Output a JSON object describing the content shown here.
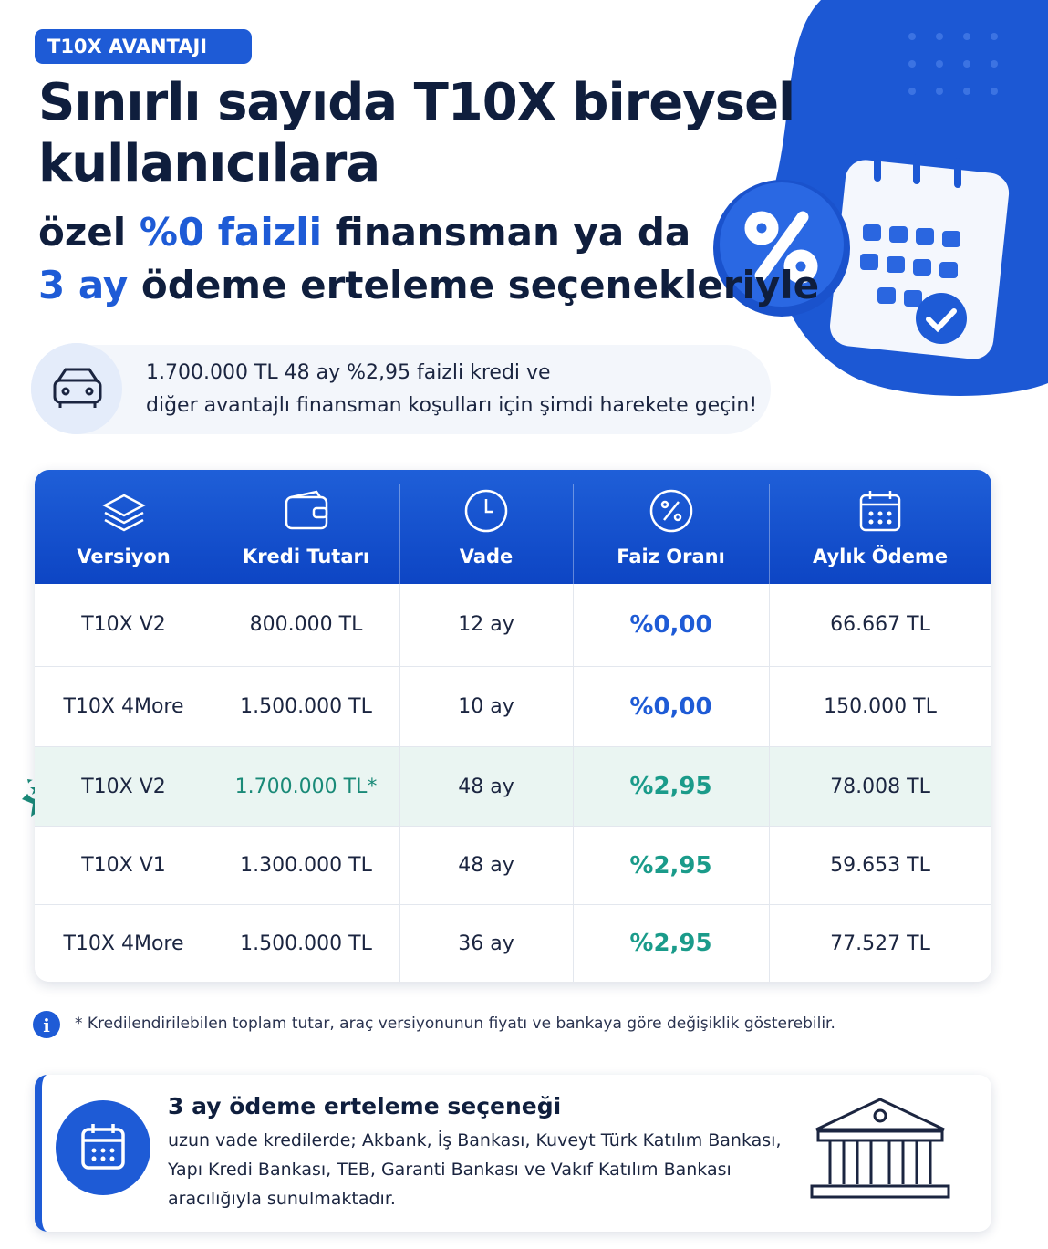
{
  "badge": "T10X AVANTAJI",
  "title": {
    "line1": "Sınırlı sayıda T10X bireysel",
    "line2": "kullanıcılara"
  },
  "subtitle": {
    "part1": "özel",
    "highlight1": "%0 faizli",
    "part2": "finansman ya da",
    "highlight2": "3 ay",
    "part3": "ödeme erteleme seçenekleriyle"
  },
  "info": {
    "line1": "1.700.000 TL 48 ay %2,95 faizli kredi ve",
    "line2": "diğer avantajlı finansman koşulları için şimdi harekete geçin!"
  },
  "table": {
    "headers": [
      "Versiyon",
      "Kredi Tutarı",
      "Vade",
      "Faiz Oranı",
      "Aylık Ödeme"
    ],
    "rows": [
      [
        "T10X V2",
        "800.000 TL",
        "12 ay",
        "%0,00",
        "66.667 TL"
      ],
      [
        "T10X 4More",
        "1.500.000 TL",
        "10 ay",
        "%0,00",
        "150.000 TL"
      ],
      [
        "T10X V2",
        "1.700.000 TL*",
        "48 ay",
        "%2,95",
        "78.008 TL"
      ],
      [
        "T10X V1",
        "1.300.000 TL",
        "48 ay",
        "%2,95",
        "59.653 TL"
      ],
      [
        "T10X 4More",
        "1.500.000 TL",
        "36 ay",
        "%2,95",
        "77.527 TL"
      ]
    ]
  },
  "footnote": "* Kredilendirilebilen toplam tutar, araç versiyonunun fiyatı ve bankaya göre değişiklik gösterebilir.",
  "deferral": {
    "title": "3 ay ödeme erteleme seçeneği",
    "lines": [
      "uzun vade kredilerde; Akbank, İş Bankası, Kuveyt Türk Katılım Bankası,",
      "Yapı Kredi Bankası, TEB, Garanti Bankası ve Vakıf Katılım Bankası",
      "aracılığıyla sunulmaktadır."
    ]
  }
}
